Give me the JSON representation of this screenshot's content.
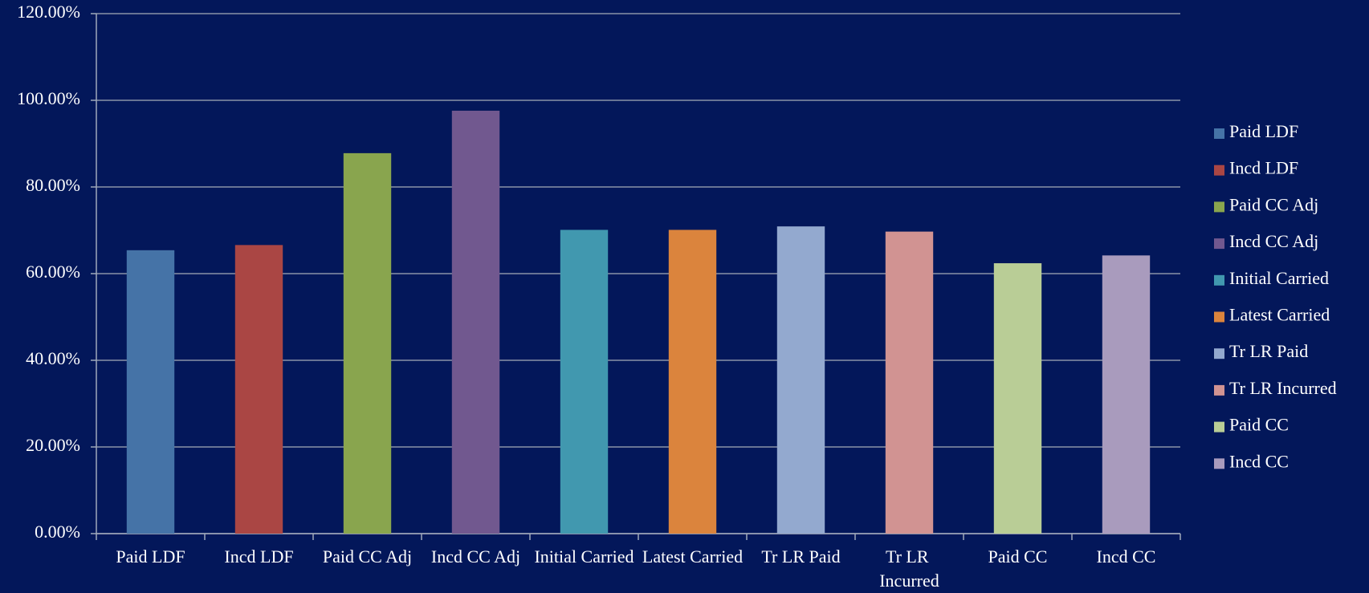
{
  "chart_data": {
    "type": "bar",
    "categories": [
      "Paid LDF",
      "Incd LDF",
      "Paid CC Adj",
      "Incd CC Adj",
      "Initial Carried",
      "Latest Carried",
      "Tr LR Paid",
      "Tr LR Incurred",
      "Paid CC",
      "Incd CC"
    ],
    "values": [
      65.4,
      66.6,
      87.8,
      97.6,
      70.1,
      70.1,
      70.9,
      69.7,
      62.4,
      64.2
    ],
    "colors": [
      "#4573a7",
      "#aa4644",
      "#89a54e",
      "#71588f",
      "#4198af",
      "#db843d",
      "#93a9cf",
      "#d19392",
      "#b9cd96",
      "#a99bbd"
    ],
    "ylim": [
      0,
      120
    ],
    "yticks": [
      {
        "value": 0,
        "label": "0.00%"
      },
      {
        "value": 20,
        "label": "20.00%"
      },
      {
        "value": 40,
        "label": "40.00%"
      },
      {
        "value": 60,
        "label": "60.00%"
      },
      {
        "value": 80,
        "label": "80.00%"
      },
      {
        "value": 100,
        "label": "100.00%"
      },
      {
        "value": 120,
        "label": "120.00%"
      }
    ],
    "grid": true,
    "legend": "right"
  }
}
